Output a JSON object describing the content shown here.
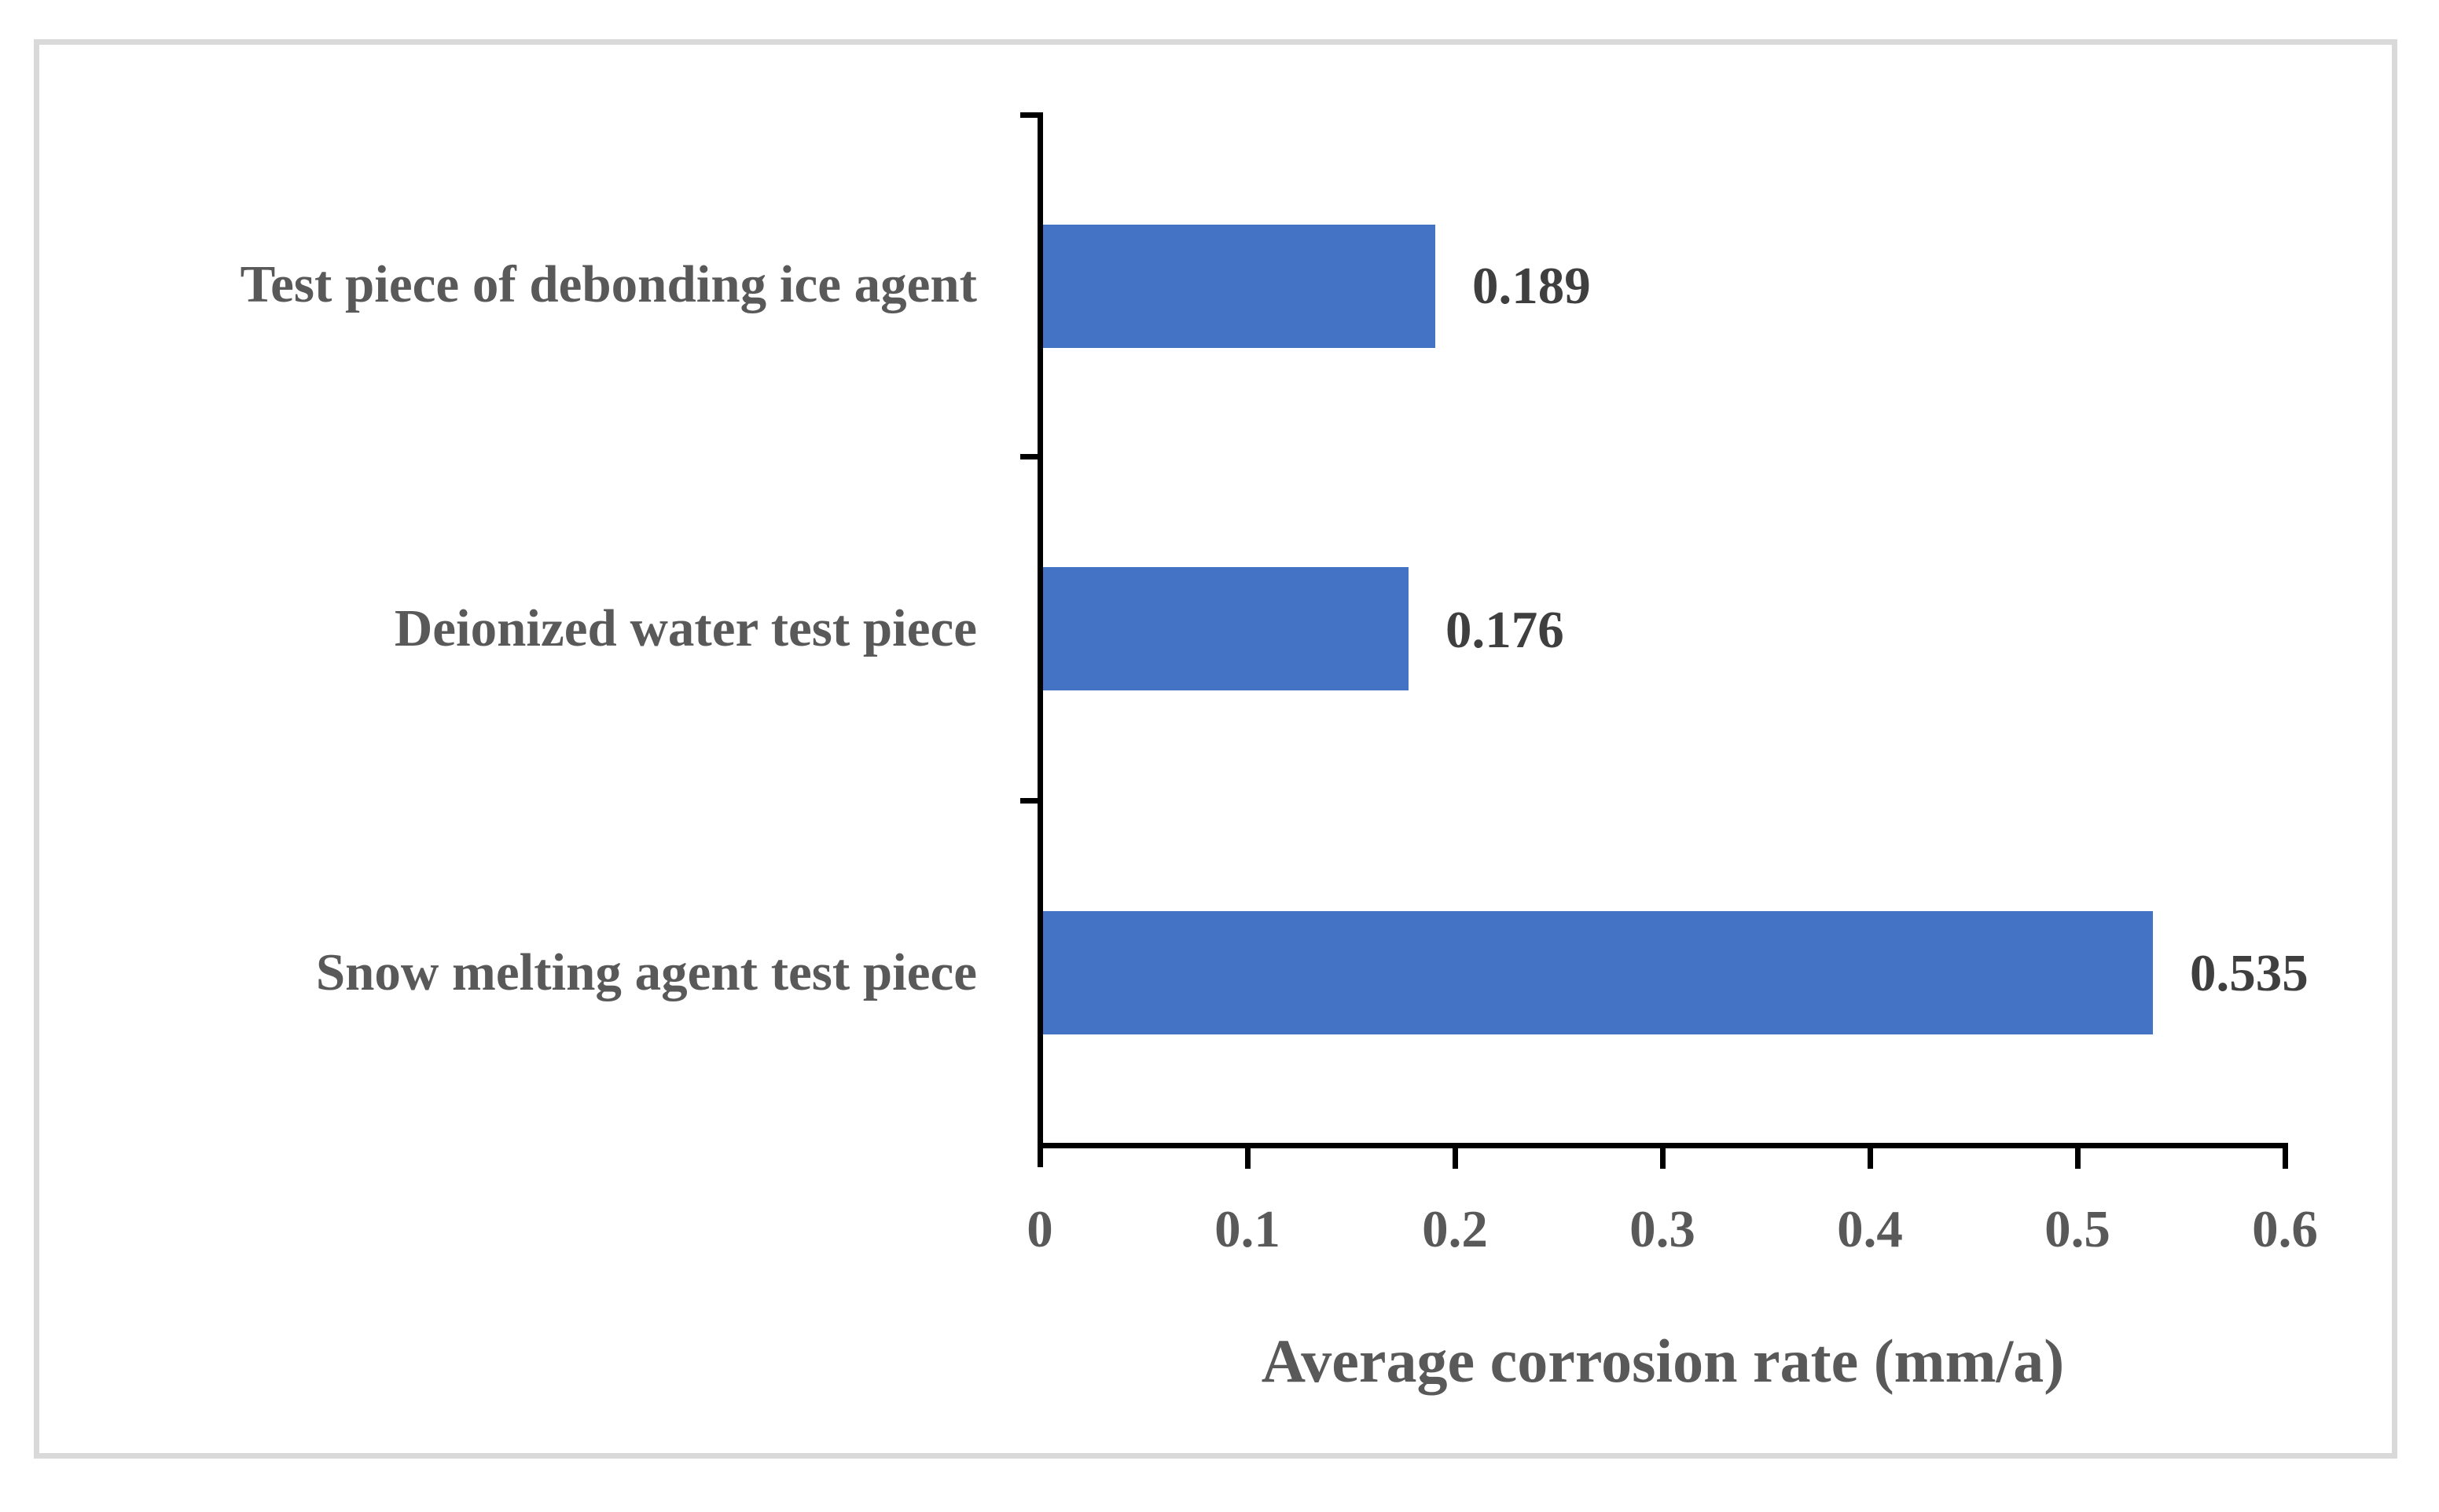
{
  "chart_data": {
    "type": "bar",
    "orientation": "horizontal",
    "categories": [
      "Test piece of debonding ice agent",
      "Deionized water test piece",
      "Snow melting agent test piece"
    ],
    "values": [
      0.189,
      0.176,
      0.535
    ],
    "data_labels": [
      "0.189",
      "0.176",
      "0.535"
    ],
    "xlabel": "Average corrosion rate (mm/a)",
    "xlim": [
      0,
      0.6
    ],
    "xticks": [
      "0",
      "0.1",
      "0.2",
      "0.3",
      "0.4",
      "0.5",
      "0.6"
    ],
    "grid": false,
    "legend": false,
    "bar_color": "#4472C4",
    "category_label_color": "#595959",
    "value_label_color": "#3F3F3F",
    "axis_color": "#000000",
    "frame_color": "#D9D9D9"
  }
}
